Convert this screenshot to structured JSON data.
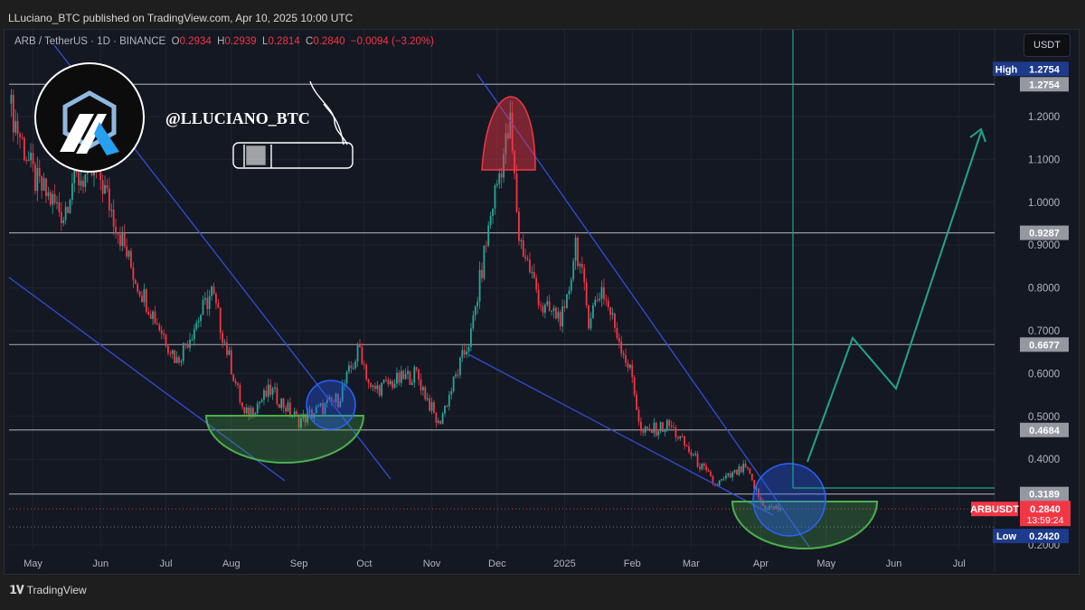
{
  "publish_line": "LLuciano_BTC published on TradingView.com, Apr 10, 2025 10:00 UTC",
  "legend": {
    "symbol": "ARB / TetherUS · 1D · BINANCE",
    "o_label": "O",
    "o": "0.2934",
    "h_label": "H",
    "h": "0.2939",
    "l_label": "L",
    "l": "0.2814",
    "c_label": "C",
    "c": "0.2840",
    "change": "−0.0094 (−3.20%)"
  },
  "currency_button": "USDT",
  "handle": "@LLUCIANO_BTC",
  "footer_brand": "TradingView",
  "colors": {
    "up": "#26a69a",
    "down": "#f23645",
    "bg": "#141822",
    "trend": "#2f4fd6",
    "projection": "#1fa58b"
  },
  "chart_data": {
    "type": "candlestick",
    "title": "ARB / TetherUS · 1D · BINANCE",
    "ylim": [
      0.18,
      1.32
    ],
    "y_ticks": [
      "1.2000",
      "1.1000",
      "1.0000",
      "0.9000",
      "0.8000",
      "0.7000",
      "0.6000",
      "0.5000",
      "0.4000",
      "0.2000"
    ],
    "y_tick_values": [
      1.2,
      1.1,
      1.0,
      0.9,
      0.8,
      0.7,
      0.6,
      0.5,
      0.4,
      0.2
    ],
    "x_labels": [
      "May",
      "Jun",
      "Jul",
      "Aug",
      "Sep",
      "Oct",
      "Nov",
      "Dec",
      "2025",
      "Feb",
      "Mar",
      "Apr",
      "May",
      "Jun",
      "Jul"
    ],
    "x_label_days": [
      11,
      42,
      72,
      102,
      133,
      163,
      194,
      224,
      255,
      286,
      313,
      345,
      375,
      406,
      436
    ],
    "close_path_day_price": [
      [
        0,
        1.23
      ],
      [
        12,
        1.05
      ],
      [
        25,
        0.97
      ],
      [
        29,
        1.05
      ],
      [
        41,
        1.07
      ],
      [
        58,
        0.82
      ],
      [
        77,
        0.63
      ],
      [
        93,
        0.79
      ],
      [
        108,
        0.5
      ],
      [
        120,
        0.56
      ],
      [
        133,
        0.49
      ],
      [
        151,
        0.54
      ],
      [
        161,
        0.66
      ],
      [
        166,
        0.56
      ],
      [
        187,
        0.6
      ],
      [
        197,
        0.48
      ],
      [
        212,
        0.69
      ],
      [
        222,
        1.0
      ],
      [
        230,
        1.18
      ],
      [
        234,
        0.92
      ],
      [
        245,
        0.75
      ],
      [
        255,
        0.73
      ],
      [
        260,
        0.91
      ],
      [
        266,
        0.73
      ],
      [
        272,
        0.8
      ],
      [
        286,
        0.59
      ],
      [
        290,
        0.46
      ],
      [
        303,
        0.48
      ],
      [
        324,
        0.34
      ],
      [
        338,
        0.38
      ],
      [
        346,
        0.29
      ],
      [
        354,
        0.284
      ]
    ],
    "levels": [
      {
        "value": 1.2754,
        "label": "1.2754"
      },
      {
        "value": 0.9287,
        "label": "0.9287"
      },
      {
        "value": 0.6677,
        "label": "0.6677"
      },
      {
        "value": 0.4684,
        "label": "0.4684"
      },
      {
        "value": 0.3189,
        "label": "0.3189"
      }
    ],
    "high": {
      "label": "High",
      "value": "1.2754",
      "price": 1.2754
    },
    "low": {
      "label": "Low",
      "value": "0.2420",
      "price": 0.242
    },
    "last": {
      "symbol": "ARBUSDT",
      "value": "0.2840",
      "countdown": "13:59:24",
      "price": 0.284
    }
  }
}
